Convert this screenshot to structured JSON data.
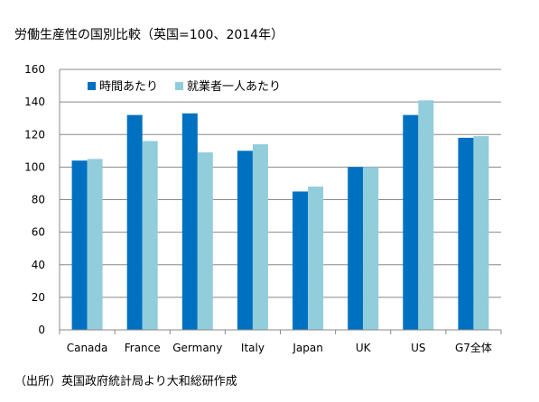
{
  "chart_data": {
    "type": "bar",
    "title": "労働生産性の国別比較（英国=100、2014年）",
    "source": "（出所）英国政府統計局より大和総研作成",
    "categories": [
      "Canada",
      "France",
      "Germany",
      "Italy",
      "Japan",
      "UK",
      "US",
      "G7全体"
    ],
    "series": [
      {
        "name": "時間あたり",
        "values": [
          104,
          132,
          133,
          110,
          85,
          100,
          132,
          118
        ]
      },
      {
        "name": "就業者一人あたり",
        "values": [
          105,
          116,
          109,
          114,
          88,
          100,
          141,
          119
        ]
      }
    ],
    "ylim": [
      0,
      160
    ],
    "yticks": [
      0,
      20,
      40,
      60,
      80,
      100,
      120,
      140,
      160
    ],
    "grid": true,
    "legend": "top-left",
    "colors": [
      "#0070c0",
      "#92cddc"
    ]
  }
}
